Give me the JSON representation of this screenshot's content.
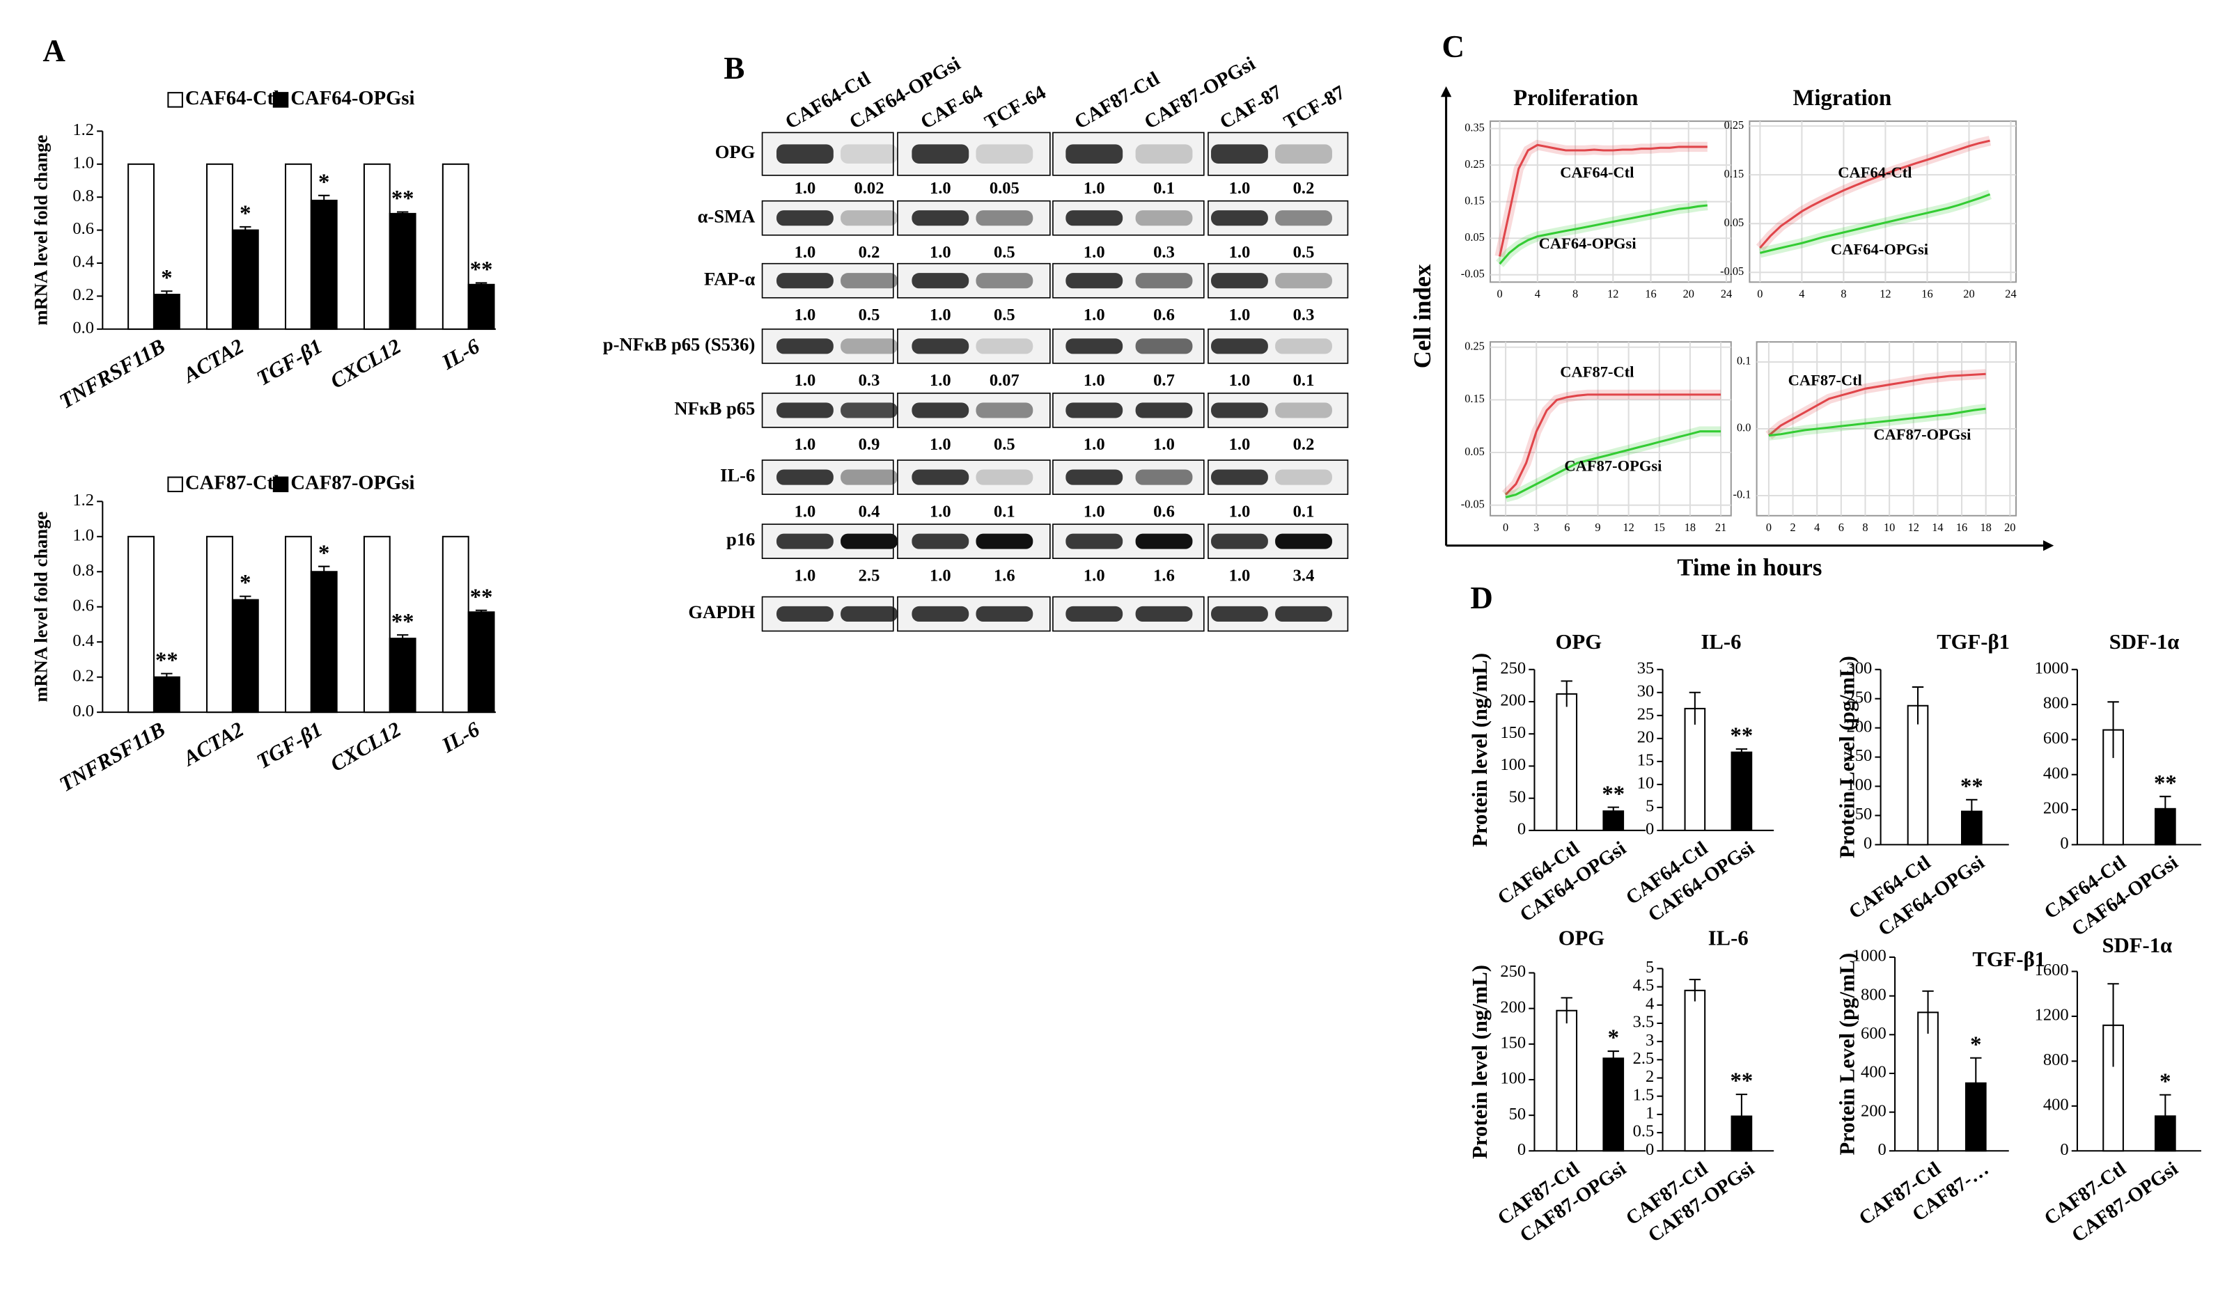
{
  "panels": {
    "a": "A",
    "b": "B",
    "c": "C",
    "d": "D"
  },
  "panel_c_axes": {
    "ylabel": "Cell index",
    "xlabel": "Time in hours"
  },
  "blot": {
    "columns": [
      "CAF64-Ctl",
      "CAF64-OPGsi",
      "CAF-64",
      "TCF-64",
      "CAF87-Ctl",
      "CAF87-OPGsi",
      "CAF-87",
      "TCF-87"
    ],
    "rows": [
      {
        "label": "OPG",
        "quant": [
          "1.0",
          "0.02",
          "1.0",
          "0.05",
          "1.0",
          "0.1",
          "1.0",
          "0.2"
        ]
      },
      {
        "label": "α-SMA",
        "quant": [
          "1.0",
          "0.2",
          "1.0",
          "0.5",
          "1.0",
          "0.3",
          "1.0",
          "0.5"
        ]
      },
      {
        "label": "FAP-α",
        "quant": [
          "1.0",
          "0.5",
          "1.0",
          "0.5",
          "1.0",
          "0.6",
          "1.0",
          "0.3"
        ]
      },
      {
        "label": "p-NFκB p65 (S536)",
        "quant": [
          "1.0",
          "0.3",
          "1.0",
          "0.07",
          "1.0",
          "0.7",
          "1.0",
          "0.1"
        ]
      },
      {
        "label": "NFκB p65",
        "quant": [
          "1.0",
          "0.9",
          "1.0",
          "0.5",
          "1.0",
          "1.0",
          "1.0",
          "0.2"
        ]
      },
      {
        "label": "IL-6",
        "quant": [
          "1.0",
          "0.4",
          "1.0",
          "0.1",
          "1.0",
          "0.6",
          "1.0",
          "0.1"
        ]
      },
      {
        "label": "p16",
        "quant": [
          "1.0",
          "2.5",
          "1.0",
          "1.6",
          "1.0",
          "1.6",
          "1.0",
          "3.4"
        ]
      },
      {
        "label": "GAPDH"
      }
    ]
  },
  "chart_data": [
    {
      "type": "bar",
      "ylabel": "mRNA level fold change",
      "categories": [
        "TNFRSF11B",
        "ACTA2",
        "TGF-β1",
        "CXCL12",
        "IL-6"
      ],
      "series": [
        {
          "name": "CAF64-Ctl",
          "color": "#ffffff",
          "values": [
            1,
            1,
            1,
            1,
            1
          ]
        },
        {
          "name": "CAF64-OPGsi",
          "color": "#000000",
          "values": [
            0.21,
            0.6,
            0.78,
            0.7,
            0.27
          ],
          "errors": [
            0.02,
            0.02,
            0.03,
            0.01,
            0.01
          ],
          "annotations": [
            "*",
            "*",
            "*",
            "**",
            "**"
          ]
        }
      ],
      "ylim": [
        0,
        1.2
      ],
      "yticks": [
        {
          "value": 0,
          "label": "0.0"
        },
        0.2,
        0.4,
        0.6,
        0.8,
        {
          "value": 1,
          "label": "1.0"
        },
        1.2
      ]
    },
    {
      "type": "bar",
      "ylabel": "mRNA level fold change",
      "categories": [
        "TNFRSF11B",
        "ACTA2",
        "TGF-β1",
        "CXCL12",
        "IL-6"
      ],
      "series": [
        {
          "name": "CAF87-Ctl",
          "color": "#ffffff",
          "values": [
            1,
            1,
            1,
            1,
            1
          ]
        },
        {
          "name": "CAF87-OPGsi",
          "color": "#000000",
          "values": [
            0.2,
            0.64,
            0.8,
            0.42,
            0.57
          ],
          "errors": [
            0.02,
            0.02,
            0.03,
            0.02,
            0.01
          ],
          "annotations": [
            "**",
            "*",
            "*",
            "**",
            "**"
          ]
        }
      ],
      "ylim": [
        0,
        1.2
      ],
      "yticks": [
        {
          "value": 0,
          "label": "0.0"
        },
        0.2,
        0.4,
        0.6,
        0.8,
        {
          "value": 1,
          "label": "1.0"
        },
        1.2
      ]
    },
    {
      "type": "line",
      "title": "Proliferation",
      "grid": true,
      "x": [
        0,
        1,
        2,
        3,
        4,
        5,
        6,
        7,
        8,
        9,
        10,
        11,
        12,
        13,
        14,
        15,
        16,
        17,
        18,
        19,
        20,
        21,
        22
      ],
      "series": [
        {
          "name": "CAF64-Ctl",
          "color": "#e0454a",
          "values": [
            0.0,
            0.12,
            0.24,
            0.29,
            0.305,
            0.3,
            0.295,
            0.29,
            0.29,
            0.29,
            0.292,
            0.29,
            0.29,
            0.292,
            0.292,
            0.295,
            0.295,
            0.297,
            0.297,
            0.3,
            0.3,
            0.3,
            0.3
          ]
        },
        {
          "name": "CAF64-OPGsi",
          "color": "#33cc33",
          "values": [
            -0.02,
            0.01,
            0.03,
            0.045,
            0.055,
            0.06,
            0.065,
            0.07,
            0.075,
            0.08,
            0.085,
            0.09,
            0.095,
            0.1,
            0.105,
            0.11,
            0.115,
            0.12,
            0.125,
            0.13,
            0.133,
            0.137,
            0.14
          ]
        }
      ],
      "xlim": [
        -1,
        24.5
      ],
      "xticks": [
        0,
        4,
        8,
        12,
        16,
        20,
        24
      ],
      "ylim": [
        -0.07,
        0.37
      ],
      "yticks": [
        -0.05,
        0.05,
        0.15,
        0.25,
        0.35
      ]
    },
    {
      "type": "line",
      "title": "Migration",
      "grid": true,
      "x": [
        0,
        1,
        2,
        3,
        4,
        5,
        6,
        7,
        8,
        9,
        10,
        11,
        12,
        13,
        14,
        15,
        16,
        17,
        18,
        19,
        20,
        21,
        22
      ],
      "series": [
        {
          "name": "CAF64-Ctl",
          "color": "#e0454a",
          "values": [
            0.0,
            0.025,
            0.045,
            0.06,
            0.075,
            0.087,
            0.098,
            0.108,
            0.118,
            0.127,
            0.136,
            0.144,
            0.152,
            0.16,
            0.167,
            0.174,
            0.181,
            0.188,
            0.195,
            0.202,
            0.209,
            0.215,
            0.22
          ]
        },
        {
          "name": "CAF64-OPGsi",
          "color": "#33cc33",
          "values": [
            -0.01,
            -0.005,
            0.0,
            0.005,
            0.01,
            0.016,
            0.022,
            0.027,
            0.032,
            0.037,
            0.042,
            0.047,
            0.052,
            0.057,
            0.062,
            0.067,
            0.072,
            0.077,
            0.082,
            0.088,
            0.095,
            0.102,
            0.11
          ]
        }
      ],
      "xlim": [
        -1,
        24.5
      ],
      "xticks": [
        0,
        4,
        8,
        12,
        16,
        20,
        24
      ],
      "ylim": [
        -0.07,
        0.26
      ],
      "yticks": [
        -0.05,
        0.05,
        0.15,
        0.25
      ]
    },
    {
      "type": "line",
      "grid": true,
      "x": [
        0,
        1,
        2,
        3,
        4,
        5,
        6,
        7,
        8,
        9,
        10,
        11,
        12,
        13,
        14,
        15,
        16,
        17,
        18,
        19,
        20,
        21
      ],
      "series": [
        {
          "name": "CAF87-Ctl",
          "color": "#e0454a",
          "values": [
            -0.03,
            -0.01,
            0.03,
            0.09,
            0.13,
            0.15,
            0.155,
            0.158,
            0.16,
            0.16,
            0.16,
            0.16,
            0.16,
            0.16,
            0.16,
            0.16,
            0.16,
            0.16,
            0.16,
            0.16,
            0.16,
            0.16
          ]
        },
        {
          "name": "CAF87-OPGsi",
          "color": "#33cc33",
          "values": [
            -0.035,
            -0.03,
            -0.02,
            -0.01,
            0.0,
            0.01,
            0.02,
            0.03,
            0.035,
            0.04,
            0.045,
            0.05,
            0.055,
            0.06,
            0.065,
            0.07,
            0.075,
            0.08,
            0.085,
            0.09,
            0.09,
            0.09
          ]
        }
      ],
      "xlim": [
        -1.5,
        22
      ],
      "xticks": [
        0,
        3,
        6,
        9,
        12,
        15,
        18,
        21
      ],
      "ylim": [
        -0.07,
        0.26
      ],
      "yticks": [
        -0.05,
        0.05,
        0.15,
        0.25
      ]
    },
    {
      "type": "line",
      "grid": true,
      "x": [
        0,
        1,
        2,
        3,
        4,
        5,
        6,
        7,
        8,
        9,
        10,
        11,
        12,
        13,
        14,
        15,
        16,
        17,
        18
      ],
      "series": [
        {
          "name": "CAF87-Ctl",
          "color": "#e0454a",
          "values": [
            -0.01,
            0.005,
            0.015,
            0.025,
            0.035,
            0.045,
            0.05,
            0.055,
            0.06,
            0.063,
            0.066,
            0.069,
            0.072,
            0.075,
            0.077,
            0.079,
            0.08,
            0.081,
            0.082
          ]
        },
        {
          "name": "CAF87-OPGsi",
          "color": "#33cc33",
          "values": [
            -0.01,
            -0.008,
            -0.005,
            -0.002,
            0,
            0.002,
            0.004,
            0.006,
            0.008,
            0.01,
            0.012,
            0.014,
            0.016,
            0.018,
            0.02,
            0.022,
            0.025,
            0.028,
            0.03
          ]
        }
      ],
      "xlim": [
        -1,
        20.5
      ],
      "xticks": [
        0,
        2,
        4,
        6,
        8,
        10,
        12,
        14,
        16,
        18,
        20
      ],
      "ylim": [
        -0.13,
        0.13
      ],
      "yticks": [
        -0.1,
        {
          "value": 0,
          "label": "0.0"
        },
        0.1
      ]
    },
    {
      "type": "bar",
      "title": "OPG",
      "ylabel": "Protein level (ng/mL)",
      "categories": [
        "CAF64-Ctl",
        "CAF64-OPGsi"
      ],
      "values": [
        212,
        30
      ],
      "errors": [
        20,
        6
      ],
      "colors": [
        "#ffffff",
        "#000000"
      ],
      "annotations": [
        null,
        "**"
      ],
      "ylim": [
        0,
        250
      ],
      "yticks": [
        0,
        50,
        100,
        150,
        200,
        250
      ]
    },
    {
      "type": "bar",
      "title": "IL-6",
      "categories": [
        "CAF64-Ctl",
        "CAF64-OPGsi"
      ],
      "values": [
        26.5,
        17
      ],
      "errors": [
        3.5,
        0.7
      ],
      "colors": [
        "#ffffff",
        "#000000"
      ],
      "annotations": [
        null,
        "**"
      ],
      "ylim": [
        0,
        35
      ],
      "yticks": [
        0,
        5,
        10,
        15,
        20,
        25,
        30,
        35
      ]
    },
    {
      "type": "bar",
      "title": "TGF-β1",
      "ylabel": "Protein Level (pg/mL)",
      "categories": [
        "CAF64-Ctl",
        "CAF64-OPGsi"
      ],
      "values": [
        238,
        57
      ],
      "errors": [
        32,
        20
      ],
      "colors": [
        "#ffffff",
        "#000000"
      ],
      "annotations": [
        null,
        "**"
      ],
      "ylim": [
        0,
        300
      ],
      "yticks": [
        0,
        50,
        100,
        150,
        200,
        250,
        300
      ]
    },
    {
      "type": "bar",
      "title": "SDF-1α",
      "categories": [
        "CAF64-Ctl",
        "CAF64-OPGsi"
      ],
      "values": [
        655,
        205
      ],
      "errors": [
        160,
        70
      ],
      "colors": [
        "#ffffff",
        "#000000"
      ],
      "annotations": [
        null,
        "**"
      ],
      "ylim": [
        0,
        1000
      ],
      "yticks": [
        0,
        200,
        400,
        600,
        800,
        1000
      ]
    },
    {
      "type": "bar",
      "title": "OPG",
      "ylabel": "Protein level (ng/mL)",
      "categories": [
        "CAF87-Ctl",
        "CAF87-OPGsi"
      ],
      "values": [
        197,
        130
      ],
      "errors": [
        18,
        10
      ],
      "colors": [
        "#ffffff",
        "#000000"
      ],
      "annotations": [
        null,
        "*"
      ],
      "ylim": [
        0,
        250
      ],
      "yticks": [
        0,
        50,
        100,
        150,
        200,
        250
      ]
    },
    {
      "type": "bar",
      "title": "IL-6",
      "categories": [
        "CAF87-Ctl",
        "CAF87-OPGsi"
      ],
      "values": [
        4.4,
        0.95
      ],
      "errors": [
        0.3,
        0.6
      ],
      "colors": [
        "#ffffff",
        "#000000"
      ],
      "annotations": [
        null,
        "**"
      ],
      "ylim": [
        0,
        5
      ],
      "yticks": [
        0,
        0.5,
        1,
        1.5,
        2,
        2.5,
        3,
        3.5,
        4,
        4.5,
        5
      ]
    },
    {
      "type": "bar",
      "title": "TGF-β1",
      "ylabel": "Protein Level (pg/mL)",
      "categories": [
        "CAF87-Ctl",
        "CAF87-…"
      ],
      "values": [
        715,
        350
      ],
      "errors": [
        110,
        130
      ],
      "colors": [
        "#ffffff",
        "#000000"
      ],
      "annotations": [
        null,
        "*"
      ],
      "ylim": [
        0,
        1000
      ],
      "yticks": [
        0,
        200,
        400,
        600,
        800,
        1000
      ]
    },
    {
      "type": "bar",
      "title": "SDF-1α",
      "categories": [
        "CAF87-Ctl",
        "CAF87-OPGsi"
      ],
      "values": [
        1120,
        310
      ],
      "errors": [
        370,
        190
      ],
      "colors": [
        "#ffffff",
        "#000000"
      ],
      "annotations": [
        null,
        "*"
      ],
      "ylim": [
        0,
        1600
      ],
      "yticks": [
        0,
        400,
        800,
        1200,
        1600
      ]
    }
  ]
}
